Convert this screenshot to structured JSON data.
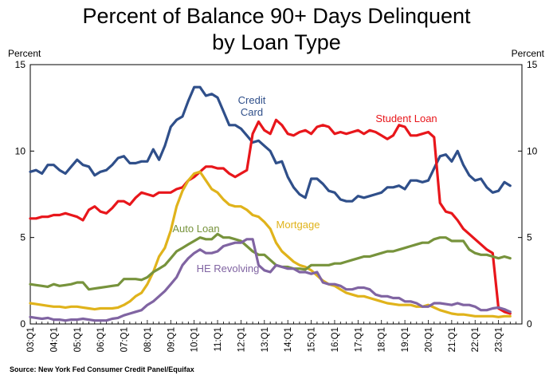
{
  "title": {
    "line1": "Percent of Balance 90+ Days Delinquent",
    "line2": "by Loan Type"
  },
  "units": {
    "left": "Percent",
    "right": "Percent"
  },
  "source": "Source: New York Fed Consumer Credit Panel/Equifax",
  "chart_data": {
    "type": "line",
    "title": "Percent of Balance 90+ Days Delinquent by Loan Type",
    "ylabel": "Percent",
    "ylim": [
      0,
      15
    ],
    "yticks": [
      0,
      5,
      10,
      15
    ],
    "x_start": 2003.0,
    "x_end": 2024.0,
    "tick_labels": [
      "03:Q1",
      "04:Q1",
      "05:Q1",
      "06:Q1",
      "07:Q1",
      "08:Q1",
      "09:Q1",
      "10:Q1",
      "11:Q1",
      "12:Q1",
      "13:Q1",
      "14:Q1",
      "15:Q1",
      "16:Q1",
      "17:Q1",
      "18:Q1",
      "19:Q1",
      "20:Q1",
      "21:Q1",
      "22:Q1",
      "23:Q1"
    ],
    "grid": false,
    "legend": "inline labels",
    "series": [
      {
        "name": "Credit Card",
        "label_lines": [
          "Credit",
          "Card"
        ],
        "color": "#2f4f8a",
        "x": [
          2003.0,
          2003.25,
          2003.5,
          2003.75,
          2004.0,
          2004.25,
          2004.5,
          2004.75,
          2005.0,
          2005.25,
          2005.5,
          2005.75,
          2006.0,
          2006.25,
          2006.5,
          2006.75,
          2007.0,
          2007.25,
          2007.5,
          2007.75,
          2008.0,
          2008.25,
          2008.5,
          2008.75,
          2009.0,
          2009.25,
          2009.5,
          2009.75,
          2010.0,
          2010.25,
          2010.5,
          2010.75,
          2011.0,
          2011.25,
          2011.5,
          2011.75,
          2012.0,
          2012.25,
          2012.5,
          2012.75,
          2013.0,
          2013.25,
          2013.5,
          2013.75,
          2014.0,
          2014.25,
          2014.5,
          2014.75,
          2015.0,
          2015.25,
          2015.5,
          2015.75,
          2016.0,
          2016.25,
          2016.5,
          2016.75,
          2017.0,
          2017.25,
          2017.5,
          2017.75,
          2018.0,
          2018.25,
          2018.5,
          2018.75,
          2019.0,
          2019.25,
          2019.5,
          2019.75,
          2020.0,
          2020.25,
          2020.5,
          2020.75,
          2021.0,
          2021.25,
          2021.5,
          2021.75,
          2022.0,
          2022.25,
          2022.5,
          2022.75,
          2023.0,
          2023.25,
          2023.5
        ],
        "values": [
          8.8,
          8.9,
          8.7,
          9.2,
          9.2,
          8.9,
          8.7,
          9.1,
          9.5,
          9.2,
          9.1,
          8.6,
          8.8,
          8.9,
          9.2,
          9.6,
          9.7,
          9.3,
          9.3,
          9.4,
          9.4,
          10.1,
          9.5,
          10.3,
          11.4,
          11.8,
          12.0,
          12.9,
          13.7,
          13.7,
          13.2,
          13.3,
          13.1,
          12.3,
          11.5,
          11.5,
          11.3,
          10.9,
          10.5,
          10.6,
          10.3,
          10.0,
          9.3,
          9.4,
          8.5,
          7.9,
          7.5,
          7.3,
          8.4,
          8.4,
          8.1,
          7.7,
          7.6,
          7.2,
          7.1,
          7.1,
          7.4,
          7.3,
          7.4,
          7.5,
          7.6,
          7.9,
          7.9,
          8.0,
          7.8,
          8.3,
          8.3,
          8.2,
          8.3,
          9.0,
          9.7,
          9.8,
          9.4,
          10.0,
          9.2,
          8.6,
          8.3,
          8.4,
          7.9,
          7.6,
          7.7,
          8.2,
          8.0
        ]
      },
      {
        "name": "Student Loan",
        "label_lines": [
          "Student Loan"
        ],
        "color": "#e8161b",
        "x": [
          2003.0,
          2003.25,
          2003.5,
          2003.75,
          2004.0,
          2004.25,
          2004.5,
          2004.75,
          2005.0,
          2005.25,
          2005.5,
          2005.75,
          2006.0,
          2006.25,
          2006.5,
          2006.75,
          2007.0,
          2007.25,
          2007.5,
          2007.75,
          2008.0,
          2008.25,
          2008.5,
          2008.75,
          2009.0,
          2009.25,
          2009.5,
          2009.75,
          2010.0,
          2010.25,
          2010.5,
          2010.75,
          2011.0,
          2011.25,
          2011.5,
          2011.75,
          2012.0,
          2012.25,
          2012.5,
          2012.75,
          2013.0,
          2013.25,
          2013.5,
          2013.75,
          2014.0,
          2014.25,
          2014.5,
          2014.75,
          2015.0,
          2015.25,
          2015.5,
          2015.75,
          2016.0,
          2016.25,
          2016.5,
          2016.75,
          2017.0,
          2017.25,
          2017.5,
          2017.75,
          2018.0,
          2018.25,
          2018.5,
          2018.75,
          2019.0,
          2019.25,
          2019.5,
          2019.75,
          2020.0,
          2020.25,
          2020.5,
          2020.75,
          2021.0,
          2021.25,
          2021.5,
          2021.75,
          2022.0,
          2022.25,
          2022.5,
          2022.75,
          2023.0,
          2023.25,
          2023.5
        ],
        "values": [
          6.1,
          6.1,
          6.2,
          6.2,
          6.3,
          6.3,
          6.4,
          6.3,
          6.2,
          6.0,
          6.6,
          6.8,
          6.5,
          6.4,
          6.7,
          7.1,
          7.1,
          6.9,
          7.3,
          7.6,
          7.5,
          7.4,
          7.6,
          7.6,
          7.6,
          7.8,
          7.9,
          8.3,
          8.5,
          8.8,
          9.1,
          9.1,
          9.0,
          9.0,
          8.7,
          8.5,
          8.7,
          8.9,
          11.0,
          11.7,
          11.2,
          11.0,
          11.8,
          11.5,
          11.0,
          10.9,
          11.1,
          11.2,
          11.0,
          11.4,
          11.5,
          11.4,
          11.0,
          11.1,
          11.0,
          11.1,
          11.2,
          11.0,
          11.2,
          11.1,
          10.9,
          10.7,
          10.9,
          11.5,
          11.4,
          10.9,
          10.9,
          11.0,
          11.1,
          10.8,
          7.0,
          6.5,
          6.4,
          6.0,
          5.5,
          5.2,
          4.9,
          4.6,
          4.3,
          4.1,
          0.9,
          0.7,
          0.6
        ]
      },
      {
        "name": "Mortgage",
        "label_lines": [
          "Mortgage"
        ],
        "color": "#e0b31b",
        "x": [
          2003.0,
          2003.25,
          2003.5,
          2003.75,
          2004.0,
          2004.25,
          2004.5,
          2004.75,
          2005.0,
          2005.25,
          2005.5,
          2005.75,
          2006.0,
          2006.25,
          2006.5,
          2006.75,
          2007.0,
          2007.25,
          2007.5,
          2007.75,
          2008.0,
          2008.25,
          2008.5,
          2008.75,
          2009.0,
          2009.25,
          2009.5,
          2009.75,
          2010.0,
          2010.25,
          2010.5,
          2010.75,
          2011.0,
          2011.25,
          2011.5,
          2011.75,
          2012.0,
          2012.25,
          2012.5,
          2012.75,
          2013.0,
          2013.25,
          2013.5,
          2013.75,
          2014.0,
          2014.25,
          2014.5,
          2014.75,
          2015.0,
          2015.25,
          2015.5,
          2015.75,
          2016.0,
          2016.25,
          2016.5,
          2016.75,
          2017.0,
          2017.25,
          2017.5,
          2017.75,
          2018.0,
          2018.25,
          2018.5,
          2018.75,
          2019.0,
          2019.25,
          2019.5,
          2019.75,
          2020.0,
          2020.25,
          2020.5,
          2020.75,
          2021.0,
          2021.25,
          2021.5,
          2021.75,
          2022.0,
          2022.25,
          2022.5,
          2022.75,
          2023.0,
          2023.25,
          2023.5
        ],
        "values": [
          1.2,
          1.15,
          1.1,
          1.05,
          1.0,
          1.0,
          0.95,
          1.0,
          1.0,
          0.95,
          0.9,
          0.85,
          0.9,
          0.9,
          0.9,
          0.95,
          1.1,
          1.3,
          1.6,
          1.8,
          2.3,
          3.0,
          3.9,
          4.4,
          5.4,
          6.8,
          7.7,
          8.3,
          8.7,
          8.8,
          8.3,
          7.8,
          7.6,
          7.2,
          6.9,
          6.8,
          6.8,
          6.6,
          6.3,
          6.2,
          5.9,
          5.5,
          4.7,
          4.2,
          3.9,
          3.6,
          3.4,
          3.3,
          3.1,
          2.8,
          2.5,
          2.3,
          2.2,
          2.0,
          1.8,
          1.7,
          1.6,
          1.6,
          1.5,
          1.4,
          1.3,
          1.2,
          1.15,
          1.1,
          1.1,
          1.1,
          1.0,
          1.0,
          1.1,
          0.95,
          0.8,
          0.7,
          0.6,
          0.55,
          0.55,
          0.5,
          0.45,
          0.45,
          0.45,
          0.45,
          0.4,
          0.45,
          0.45
        ]
      },
      {
        "name": "Auto Loan",
        "label_lines": [
          "Auto Loan"
        ],
        "color": "#77933c",
        "x": [
          2003.0,
          2003.25,
          2003.5,
          2003.75,
          2004.0,
          2004.25,
          2004.5,
          2004.75,
          2005.0,
          2005.25,
          2005.5,
          2005.75,
          2006.0,
          2006.25,
          2006.5,
          2006.75,
          2007.0,
          2007.25,
          2007.5,
          2007.75,
          2008.0,
          2008.25,
          2008.5,
          2008.75,
          2009.0,
          2009.25,
          2009.5,
          2009.75,
          2010.0,
          2010.25,
          2010.5,
          2010.75,
          2011.0,
          2011.25,
          2011.5,
          2011.75,
          2012.0,
          2012.25,
          2012.5,
          2012.75,
          2013.0,
          2013.25,
          2013.5,
          2013.75,
          2014.0,
          2014.25,
          2014.5,
          2014.75,
          2015.0,
          2015.25,
          2015.5,
          2015.75,
          2016.0,
          2016.25,
          2016.5,
          2016.75,
          2017.0,
          2017.25,
          2017.5,
          2017.75,
          2018.0,
          2018.25,
          2018.5,
          2018.75,
          2019.0,
          2019.25,
          2019.5,
          2019.75,
          2020.0,
          2020.25,
          2020.5,
          2020.75,
          2021.0,
          2021.25,
          2021.5,
          2021.75,
          2022.0,
          2022.25,
          2022.5,
          2022.75,
          2023.0,
          2023.25,
          2023.5
        ],
        "values": [
          2.3,
          2.25,
          2.2,
          2.15,
          2.3,
          2.2,
          2.25,
          2.3,
          2.4,
          2.4,
          2.0,
          2.05,
          2.1,
          2.15,
          2.2,
          2.25,
          2.6,
          2.6,
          2.6,
          2.55,
          2.7,
          3.0,
          3.2,
          3.4,
          3.8,
          4.2,
          4.4,
          4.6,
          4.8,
          5.0,
          4.9,
          4.9,
          5.2,
          5.0,
          5.0,
          4.9,
          4.8,
          4.5,
          4.2,
          4.0,
          4.0,
          3.7,
          3.4,
          3.3,
          3.3,
          3.2,
          3.2,
          3.15,
          3.4,
          3.4,
          3.4,
          3.4,
          3.5,
          3.5,
          3.6,
          3.7,
          3.8,
          3.9,
          3.9,
          4.0,
          4.1,
          4.2,
          4.2,
          4.3,
          4.4,
          4.5,
          4.6,
          4.7,
          4.7,
          4.9,
          5.0,
          5.0,
          4.8,
          4.8,
          4.8,
          4.3,
          4.1,
          4.0,
          4.0,
          3.9,
          3.8,
          3.9,
          3.8
        ]
      },
      {
        "name": "HE Revolving",
        "label_lines": [
          "HE Revolving"
        ],
        "color": "#8064a2",
        "x": [
          2003.0,
          2003.25,
          2003.5,
          2003.75,
          2004.0,
          2004.25,
          2004.5,
          2004.75,
          2005.0,
          2005.25,
          2005.5,
          2005.75,
          2006.0,
          2006.25,
          2006.5,
          2006.75,
          2007.0,
          2007.25,
          2007.5,
          2007.75,
          2008.0,
          2008.25,
          2008.5,
          2008.75,
          2009.0,
          2009.25,
          2009.5,
          2009.75,
          2010.0,
          2010.25,
          2010.5,
          2010.75,
          2011.0,
          2011.25,
          2011.5,
          2011.75,
          2012.0,
          2012.25,
          2012.5,
          2012.75,
          2013.0,
          2013.25,
          2013.5,
          2013.75,
          2014.0,
          2014.25,
          2014.5,
          2014.75,
          2015.0,
          2015.25,
          2015.5,
          2015.75,
          2016.0,
          2016.25,
          2016.5,
          2016.75,
          2017.0,
          2017.25,
          2017.5,
          2017.75,
          2018.0,
          2018.25,
          2018.5,
          2018.75,
          2019.0,
          2019.25,
          2019.5,
          2019.75,
          2020.0,
          2020.25,
          2020.5,
          2020.75,
          2021.0,
          2021.25,
          2021.5,
          2021.75,
          2022.0,
          2022.25,
          2022.5,
          2022.75,
          2023.0,
          2023.25,
          2023.5
        ],
        "values": [
          0.4,
          0.35,
          0.3,
          0.35,
          0.25,
          0.25,
          0.2,
          0.25,
          0.25,
          0.3,
          0.25,
          0.2,
          0.2,
          0.2,
          0.3,
          0.35,
          0.5,
          0.6,
          0.7,
          0.8,
          1.1,
          1.3,
          1.6,
          1.9,
          2.3,
          2.7,
          3.4,
          3.8,
          4.1,
          4.3,
          4.1,
          4.1,
          4.2,
          4.5,
          4.6,
          4.7,
          4.7,
          4.9,
          4.9,
          3.4,
          3.1,
          3.0,
          3.4,
          3.3,
          3.2,
          3.2,
          3.0,
          3.0,
          2.9,
          3.0,
          2.4,
          2.3,
          2.3,
          2.2,
          2.0,
          2.0,
          2.1,
          2.1,
          2.0,
          1.7,
          1.6,
          1.6,
          1.5,
          1.5,
          1.3,
          1.3,
          1.2,
          1.0,
          1.0,
          1.2,
          1.2,
          1.15,
          1.1,
          1.2,
          1.1,
          1.1,
          1.0,
          0.8,
          0.8,
          0.9,
          0.95,
          0.85,
          0.7
        ]
      }
    ]
  }
}
